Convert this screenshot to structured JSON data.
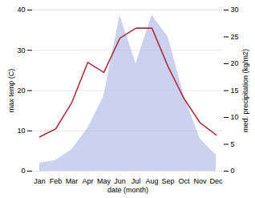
{
  "chart_data": {
    "type": "line",
    "categories": [
      "Jan",
      "Feb",
      "Mar",
      "Apr",
      "May",
      "Jun",
      "Jul",
      "Aug",
      "Sep",
      "Oct",
      "Nov",
      "Dec"
    ],
    "xlabel": "date (month)",
    "ylabel": "max temp (C)",
    "y2label": "med. precipitation (kg/m2)",
    "series": [
      {
        "type": "area",
        "axis": "y2",
        "color": "#b0b8e8",
        "values": [
          1.5,
          2.0,
          4.0,
          8.0,
          14.0,
          29.0,
          20.0,
          29.0,
          25.0,
          14.0,
          6.0,
          3.0
        ]
      },
      {
        "type": "line",
        "color": "#b03040",
        "values": [
          8.5,
          10.5,
          17.0,
          27.0,
          24.5,
          33.0,
          35.5,
          35.5,
          26.0,
          18.0,
          12.0,
          9.0
        ]
      }
    ],
    "ylim": [
      0,
      40
    ],
    "yticks": [
      0,
      10,
      20,
      30,
      40
    ],
    "y2lim": [
      0,
      30
    ],
    "y2ticks": [
      0,
      5,
      10,
      15,
      20,
      25,
      30
    ],
    "grid": true
  }
}
